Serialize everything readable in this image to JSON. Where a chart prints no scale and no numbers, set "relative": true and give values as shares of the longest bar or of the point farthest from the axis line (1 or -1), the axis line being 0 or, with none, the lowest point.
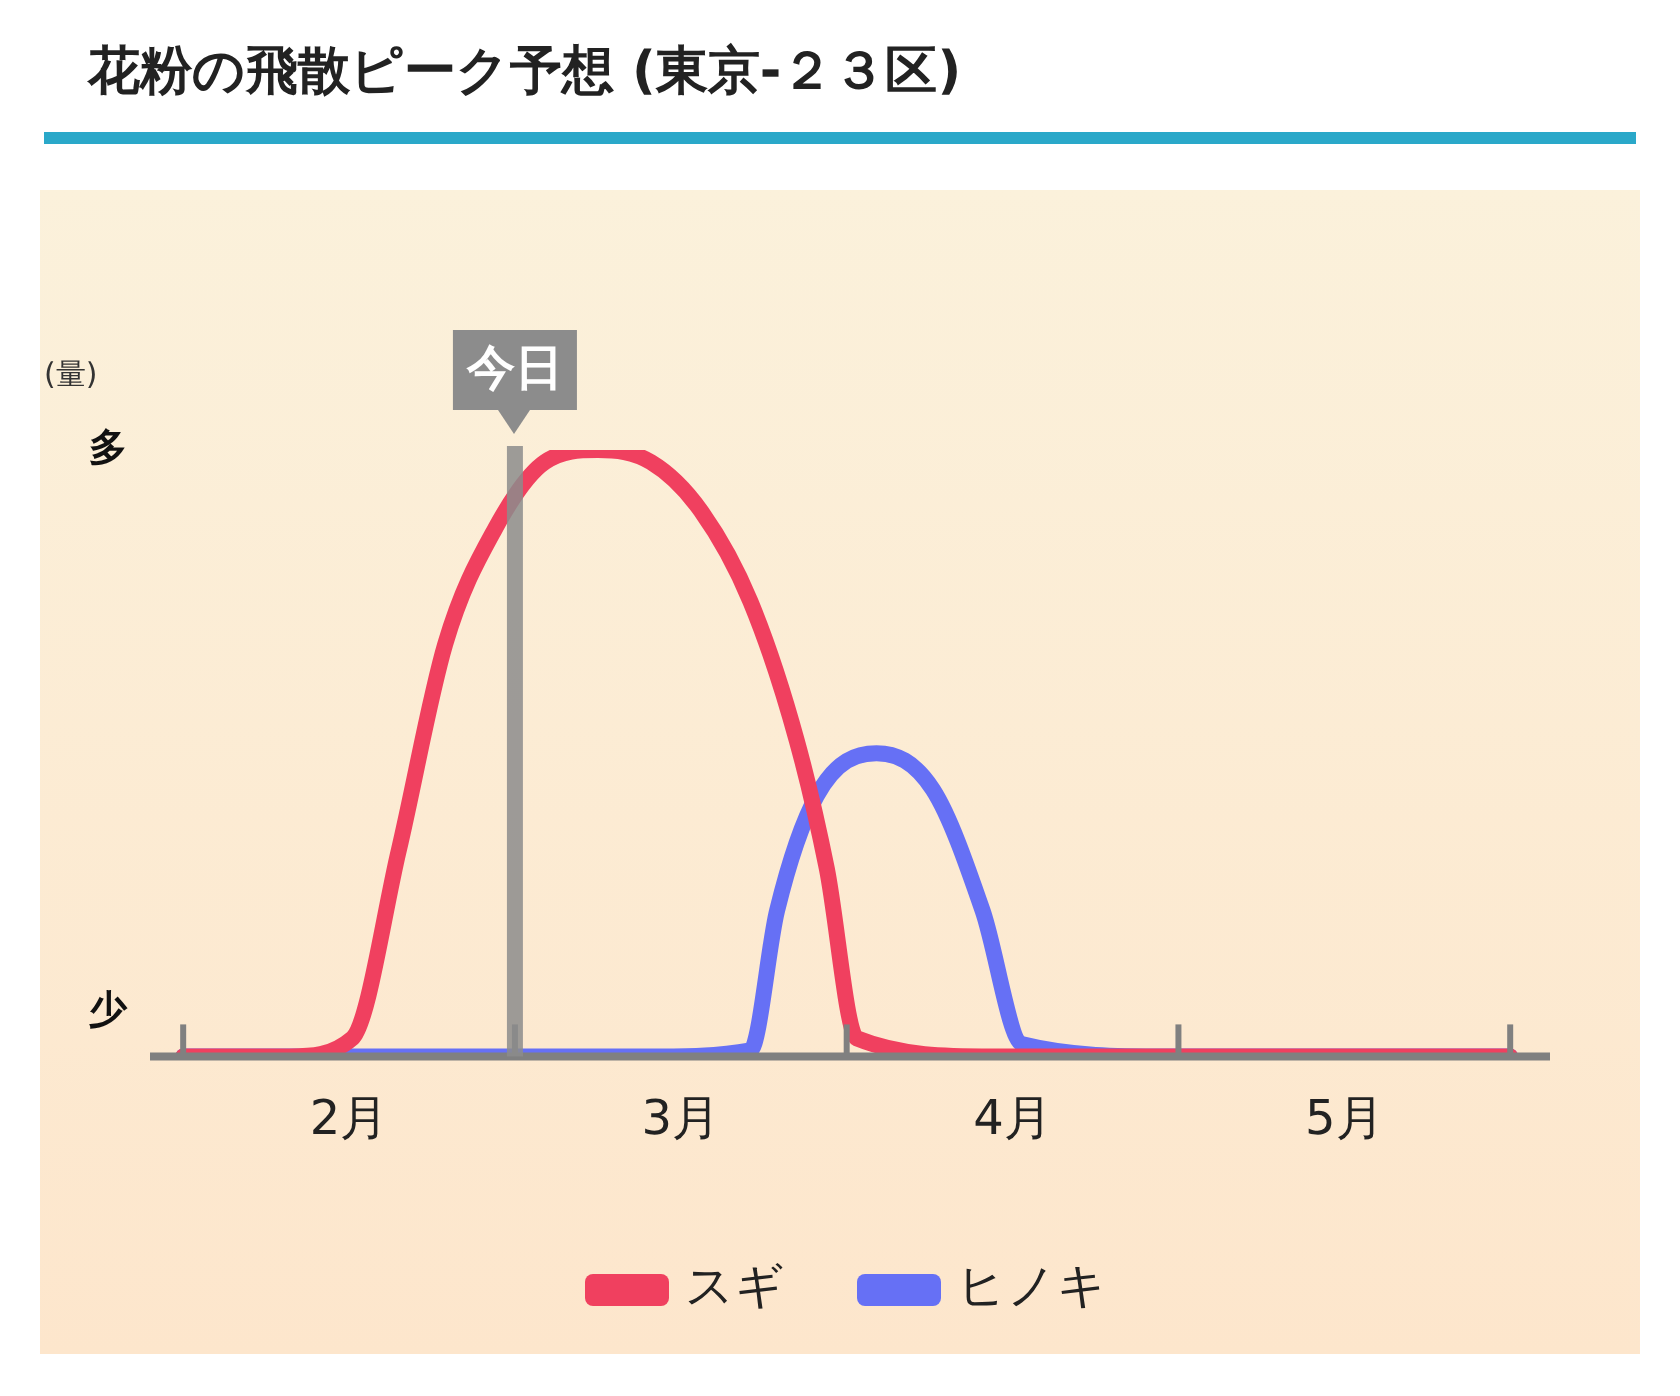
{
  "chart_data": {
    "type": "line",
    "title": "花粉の飛散ピーク予想 (東京-２３区)",
    "ylabel": "(量)",
    "relative": true,
    "xlim": [
      1.9,
      6.12
    ],
    "xticks": [
      {
        "value": 2,
        "label": null
      },
      {
        "value": 2.5,
        "label": "2月"
      },
      {
        "value": 3,
        "label": null
      },
      {
        "value": 3.5,
        "label": "3月"
      },
      {
        "value": 4,
        "label": null
      },
      {
        "value": 4.5,
        "label": "4月"
      },
      {
        "value": 5,
        "label": null
      },
      {
        "value": 5.5,
        "label": "5月"
      },
      {
        "value": 6,
        "label": null
      }
    ],
    "series": [
      {
        "name": "スギ",
        "color": "#f0405f",
        "x": [
          2.0,
          2.32,
          2.51,
          2.65,
          2.79,
          2.94,
          3.09,
          3.25,
          3.41,
          3.56,
          3.71,
          3.85,
          3.94,
          4.03,
          4.44,
          6.0
        ],
        "values": [
          0,
          0,
          0.03,
          0.34,
          0.68,
          0.87,
          0.98,
          1.0,
          0.98,
          0.9,
          0.75,
          0.52,
          0.31,
          0.03,
          0,
          0
        ]
      },
      {
        "name": "ヒノキ",
        "color": "#6670f5",
        "x": [
          2.0,
          3.41,
          3.71,
          3.79,
          3.91,
          4.09,
          4.26,
          4.41,
          4.53,
          4.97,
          6.0
        ],
        "values": [
          0,
          0,
          0.01,
          0.24,
          0.43,
          0.5,
          0.44,
          0.24,
          0.02,
          0,
          0
        ]
      }
    ],
    "ref_lines": [
      {
        "axis": "x",
        "value": 3.0,
        "label": "今日",
        "color": "#8c8c8c"
      }
    ],
    "annotations": [
      "多",
      "少"
    ],
    "grid": false,
    "legend": "bottom",
    "marker": "none",
    "line_style": "solid"
  }
}
